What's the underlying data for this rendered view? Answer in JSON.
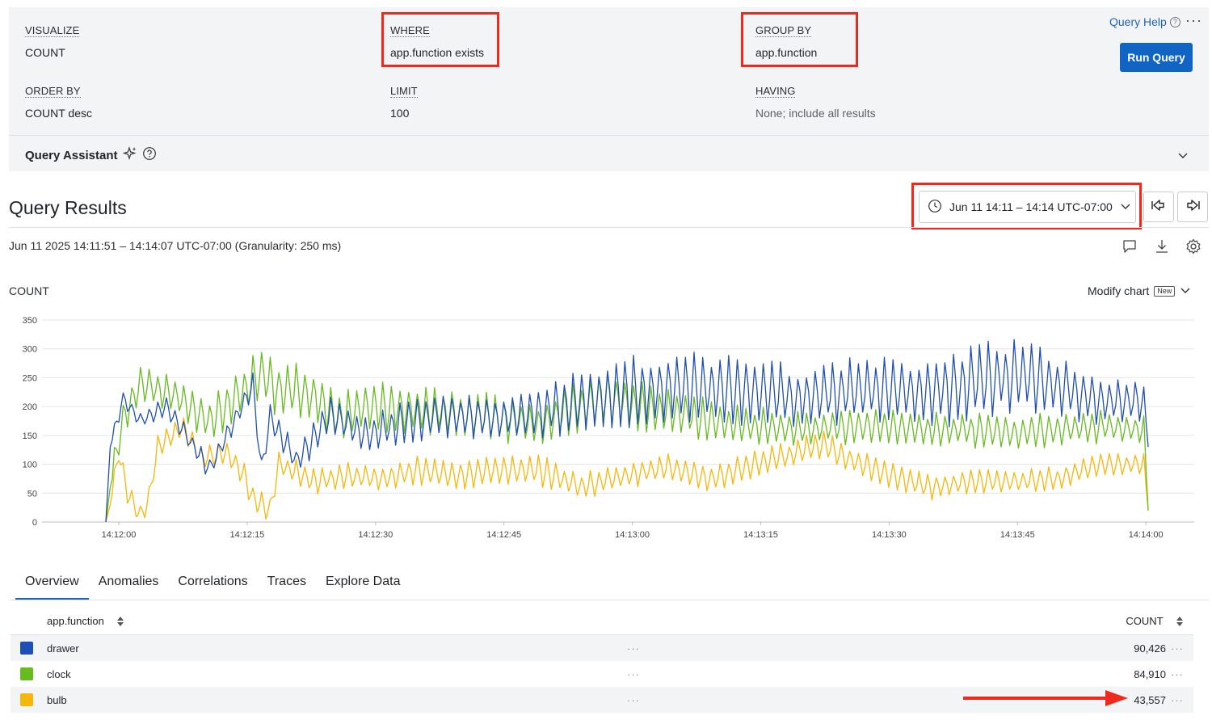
{
  "query": {
    "visualize": {
      "label": "VISUALIZE",
      "value": "COUNT"
    },
    "where": {
      "label": "WHERE",
      "value": "app.function exists"
    },
    "group_by": {
      "label": "GROUP BY",
      "value": "app.function"
    },
    "order_by": {
      "label": "ORDER BY",
      "value": "COUNT desc"
    },
    "limit": {
      "label": "LIMIT",
      "value": "100"
    },
    "having": {
      "label": "HAVING",
      "value": "None; include all results"
    },
    "query_help": "Query Help",
    "help_glyph": "?",
    "more_glyph": "···",
    "run_button": "Run Query",
    "assistant": "Query Assistant"
  },
  "results": {
    "title": "Query Results",
    "time_range": "Jun 11 14:11 – 14:14 UTC-07:00",
    "range_text": "Jun 11 2025 14:11:51 – 14:14:07 UTC-07:00 (Granularity: 250 ms)",
    "count_label": "COUNT",
    "modify_chart": "Modify chart",
    "new_badge": "New"
  },
  "chart_data": {
    "type": "line",
    "ylim": [
      0,
      350
    ],
    "yticks": [
      "0",
      "50",
      "100",
      "150",
      "200",
      "250",
      "300",
      "350"
    ],
    "xticks": [
      "14:12:00",
      "14:12:15",
      "14:12:30",
      "14:12:45",
      "14:13:00",
      "14:13:15",
      "14:13:30",
      "14:13:45",
      "14:14:00"
    ],
    "xlim": [
      "14:11:51",
      "14:14:07"
    ],
    "series": [
      {
        "name": "drawer",
        "color": "#1f4fb4",
        "anchors": [
          [
            0,
            0
          ],
          [
            0.5,
            130
          ],
          [
            2,
            215
          ],
          [
            4,
            175
          ],
          [
            7,
            200
          ],
          [
            12,
            90
          ],
          [
            16,
            210
          ],
          [
            17,
            235
          ],
          [
            18,
            90
          ],
          [
            19,
            180
          ],
          [
            22,
            105
          ],
          [
            26,
            185
          ],
          [
            30,
            150
          ],
          [
            35,
            175
          ],
          [
            40,
            185
          ],
          [
            45,
            180
          ],
          [
            50,
            190
          ],
          [
            55,
            210
          ],
          [
            60,
            225
          ],
          [
            65,
            235
          ],
          [
            70,
            230
          ],
          [
            75,
            225
          ],
          [
            80,
            215
          ],
          [
            85,
            225
          ],
          [
            90,
            230
          ],
          [
            95,
            225
          ],
          [
            100,
            240
          ],
          [
            105,
            255
          ],
          [
            110,
            235
          ],
          [
            115,
            210
          ],
          [
            120,
            210
          ],
          [
            120.5,
            130
          ]
        ],
        "amps": [
          [
            0,
            10
          ],
          [
            10,
            15
          ],
          [
            20,
            20
          ],
          [
            30,
            28
          ],
          [
            40,
            30
          ],
          [
            50,
            35
          ],
          [
            55,
            45
          ],
          [
            60,
            50
          ],
          [
            70,
            50
          ],
          [
            80,
            45
          ],
          [
            90,
            45
          ],
          [
            95,
            50
          ],
          [
            100,
            55
          ],
          [
            110,
            45
          ],
          [
            120,
            30
          ]
        ]
      },
      {
        "name": "clock",
        "color": "#66bb1f",
        "anchors": [
          [
            0,
            0
          ],
          [
            0.5,
            60
          ],
          [
            2,
            180
          ],
          [
            4,
            240
          ],
          [
            8,
            220
          ],
          [
            12,
            175
          ],
          [
            16,
            230
          ],
          [
            18,
            255
          ],
          [
            20,
            230
          ],
          [
            24,
            220
          ],
          [
            27,
            180
          ],
          [
            30,
            200
          ],
          [
            35,
            195
          ],
          [
            40,
            190
          ],
          [
            45,
            180
          ],
          [
            50,
            170
          ],
          [
            55,
            200
          ],
          [
            58,
            215
          ],
          [
            62,
            200
          ],
          [
            66,
            190
          ],
          [
            70,
            175
          ],
          [
            75,
            165
          ],
          [
            80,
            160
          ],
          [
            85,
            165
          ],
          [
            90,
            165
          ],
          [
            95,
            160
          ],
          [
            100,
            160
          ],
          [
            105,
            155
          ],
          [
            110,
            160
          ],
          [
            115,
            165
          ],
          [
            120,
            160
          ],
          [
            120.5,
            20
          ]
        ],
        "amps": [
          [
            0,
            25
          ],
          [
            10,
            30
          ],
          [
            20,
            40
          ],
          [
            30,
            35
          ],
          [
            40,
            35
          ],
          [
            50,
            30
          ],
          [
            55,
            40
          ],
          [
            60,
            35
          ],
          [
            70,
            30
          ],
          [
            80,
            25
          ],
          [
            90,
            25
          ],
          [
            100,
            25
          ],
          [
            110,
            25
          ],
          [
            120,
            20
          ]
        ]
      },
      {
        "name": "bulb",
        "color": "#f5b70a",
        "anchors": [
          [
            0,
            0
          ],
          [
            0.5,
            30
          ],
          [
            1.5,
            120
          ],
          [
            2.5,
            50
          ],
          [
            4,
            10
          ],
          [
            5,
            40
          ],
          [
            6,
            130
          ],
          [
            9,
            165
          ],
          [
            11,
            110
          ],
          [
            14,
            120
          ],
          [
            16,
            80
          ],
          [
            17,
            40
          ],
          [
            19,
            20
          ],
          [
            20,
            100
          ],
          [
            24,
            70
          ],
          [
            28,
            80
          ],
          [
            32,
            75
          ],
          [
            36,
            90
          ],
          [
            40,
            80
          ],
          [
            45,
            90
          ],
          [
            50,
            90
          ],
          [
            55,
            60
          ],
          [
            60,
            80
          ],
          [
            65,
            95
          ],
          [
            70,
            75
          ],
          [
            75,
            100
          ],
          [
            80,
            120
          ],
          [
            83,
            135
          ],
          [
            85,
            115
          ],
          [
            90,
            85
          ],
          [
            95,
            60
          ],
          [
            100,
            70
          ],
          [
            105,
            70
          ],
          [
            110,
            75
          ],
          [
            115,
            100
          ],
          [
            120,
            100
          ],
          [
            120.5,
            20
          ]
        ],
        "amps": [
          [
            0,
            15
          ],
          [
            20,
            18
          ],
          [
            40,
            20
          ],
          [
            50,
            22
          ],
          [
            60,
            18
          ],
          [
            70,
            18
          ],
          [
            80,
            20
          ],
          [
            90,
            18
          ],
          [
            100,
            18
          ],
          [
            120,
            15
          ]
        ]
      }
    ]
  },
  "tabs": [
    "Overview",
    "Anomalies",
    "Correlations",
    "Traces",
    "Explore Data"
  ],
  "table": {
    "col_function": "app.function",
    "col_count": "COUNT",
    "rows": [
      {
        "name": "drawer",
        "count": "90,426",
        "color": "#1f4fb4"
      },
      {
        "name": "clock",
        "count": "84,910",
        "color": "#66bb1f"
      },
      {
        "name": "bulb",
        "count": "43,557",
        "color": "#f5b70a"
      }
    ],
    "cell_dots": "···"
  }
}
